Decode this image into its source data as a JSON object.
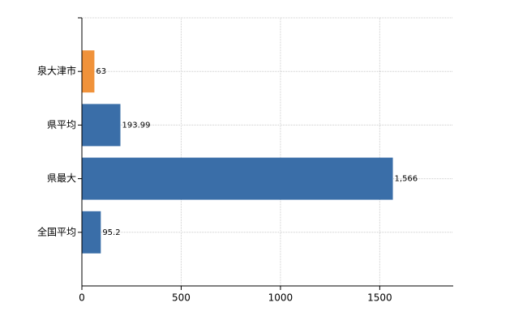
{
  "chart_data": {
    "type": "bar",
    "orientation": "horizontal",
    "categories": [
      "泉大津市",
      "県平均",
      "県最大",
      "全国平均"
    ],
    "values": [
      63,
      193.99,
      1566,
      95.2
    ],
    "value_labels": [
      "63",
      "193.99",
      "1,566",
      "95.2"
    ],
    "colors": [
      "#f0923a",
      "#3a6ea8",
      "#3a6ea8",
      "#3a6ea8"
    ],
    "xlim": [
      0,
      1870
    ],
    "xticks": [
      0,
      500,
      1000,
      1500
    ],
    "grid": true
  }
}
